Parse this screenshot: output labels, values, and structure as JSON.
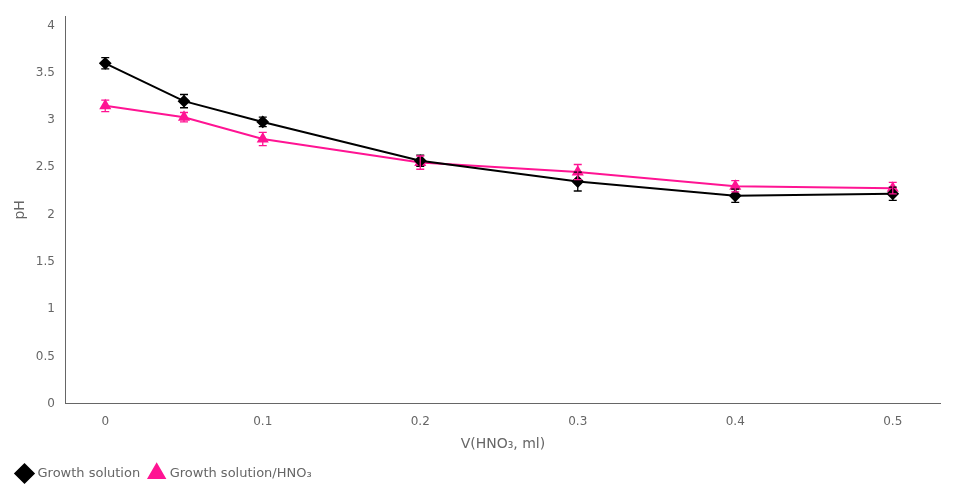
{
  "chart_data": {
    "type": "line",
    "x": [
      0,
      0.05,
      0.1,
      0.2,
      0.3,
      0.4,
      0.5
    ],
    "series": [
      {
        "name": "Growth solution",
        "color": "#000000",
        "marker": "diamond",
        "line_style": "solid",
        "values": [
          3.6,
          3.2,
          2.98,
          2.57,
          2.35,
          2.2,
          2.22
        ],
        "yerr": [
          0.06,
          0.07,
          0.05,
          0.06,
          0.1,
          0.07,
          0.07
        ]
      },
      {
        "name": "Growth solution/HNO₃",
        "color": "#FF1493",
        "marker": "triangle",
        "line_style": "solid",
        "values": [
          3.15,
          3.03,
          2.8,
          2.55,
          2.45,
          2.3,
          2.28
        ],
        "yerr": [
          0.06,
          0.05,
          0.07,
          0.07,
          0.08,
          0.06,
          0.06
        ]
      }
    ],
    "xlabel": "V(HNO₃, ml)",
    "ylabel": "pH",
    "xlim": [
      -0.025,
      0.53
    ],
    "ylim": [
      0,
      4.1
    ],
    "xticks": [
      0,
      0.1,
      0.2,
      0.3,
      0.4,
      0.5
    ],
    "yticks": [
      0,
      0.5,
      1,
      1.5,
      2,
      2.5,
      3,
      3.5,
      4
    ],
    "grid": false,
    "legend": "lower left"
  }
}
